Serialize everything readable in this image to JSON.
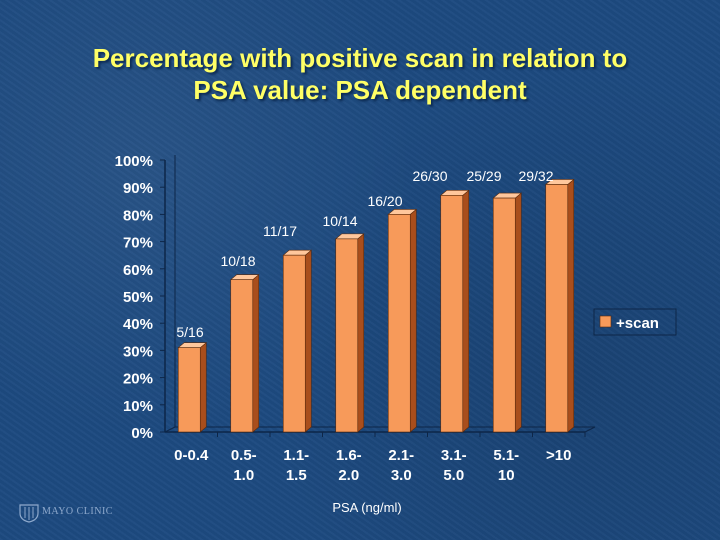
{
  "slide": {
    "title_line1": "Percentage with positive scan in relation to",
    "title_line2": "PSA value: PSA dependent",
    "logo_text": "MAYO CLINIC"
  },
  "colors": {
    "background": "#1d4a80",
    "title": "#ffff66",
    "bar_front": "#f79a5a",
    "bar_side": "#a94e1c",
    "bar_top": "#ffc79c",
    "text": "#ffffff"
  },
  "chart_data": {
    "type": "bar",
    "style": "3d-column",
    "categories": [
      [
        "0-0.4"
      ],
      [
        "0.5-",
        "1.0"
      ],
      [
        "1.1-",
        "1.5"
      ],
      [
        "1.6-",
        "2.0"
      ],
      [
        "2.1-",
        "3.0"
      ],
      [
        "3.1-",
        "5.0"
      ],
      [
        "5.1-",
        "10"
      ],
      [
        ">10"
      ]
    ],
    "series": [
      {
        "name": "+scan",
        "values": [
          31,
          56,
          65,
          71,
          80,
          87,
          86,
          91
        ],
        "labels": [
          "5/16",
          "10/18",
          "11/17",
          "10/14",
          "16/20",
          "26/30",
          "25/29",
          "29/32"
        ]
      }
    ],
    "ylim": [
      0,
      100
    ],
    "yticks": [
      "0%",
      "10%",
      "20%",
      "30%",
      "40%",
      "50%",
      "60%",
      "70%",
      "80%",
      "90%",
      "100%"
    ],
    "xlabel": "PSA (ng/ml)",
    "ylabel": "",
    "grid": false,
    "legend": "right"
  }
}
